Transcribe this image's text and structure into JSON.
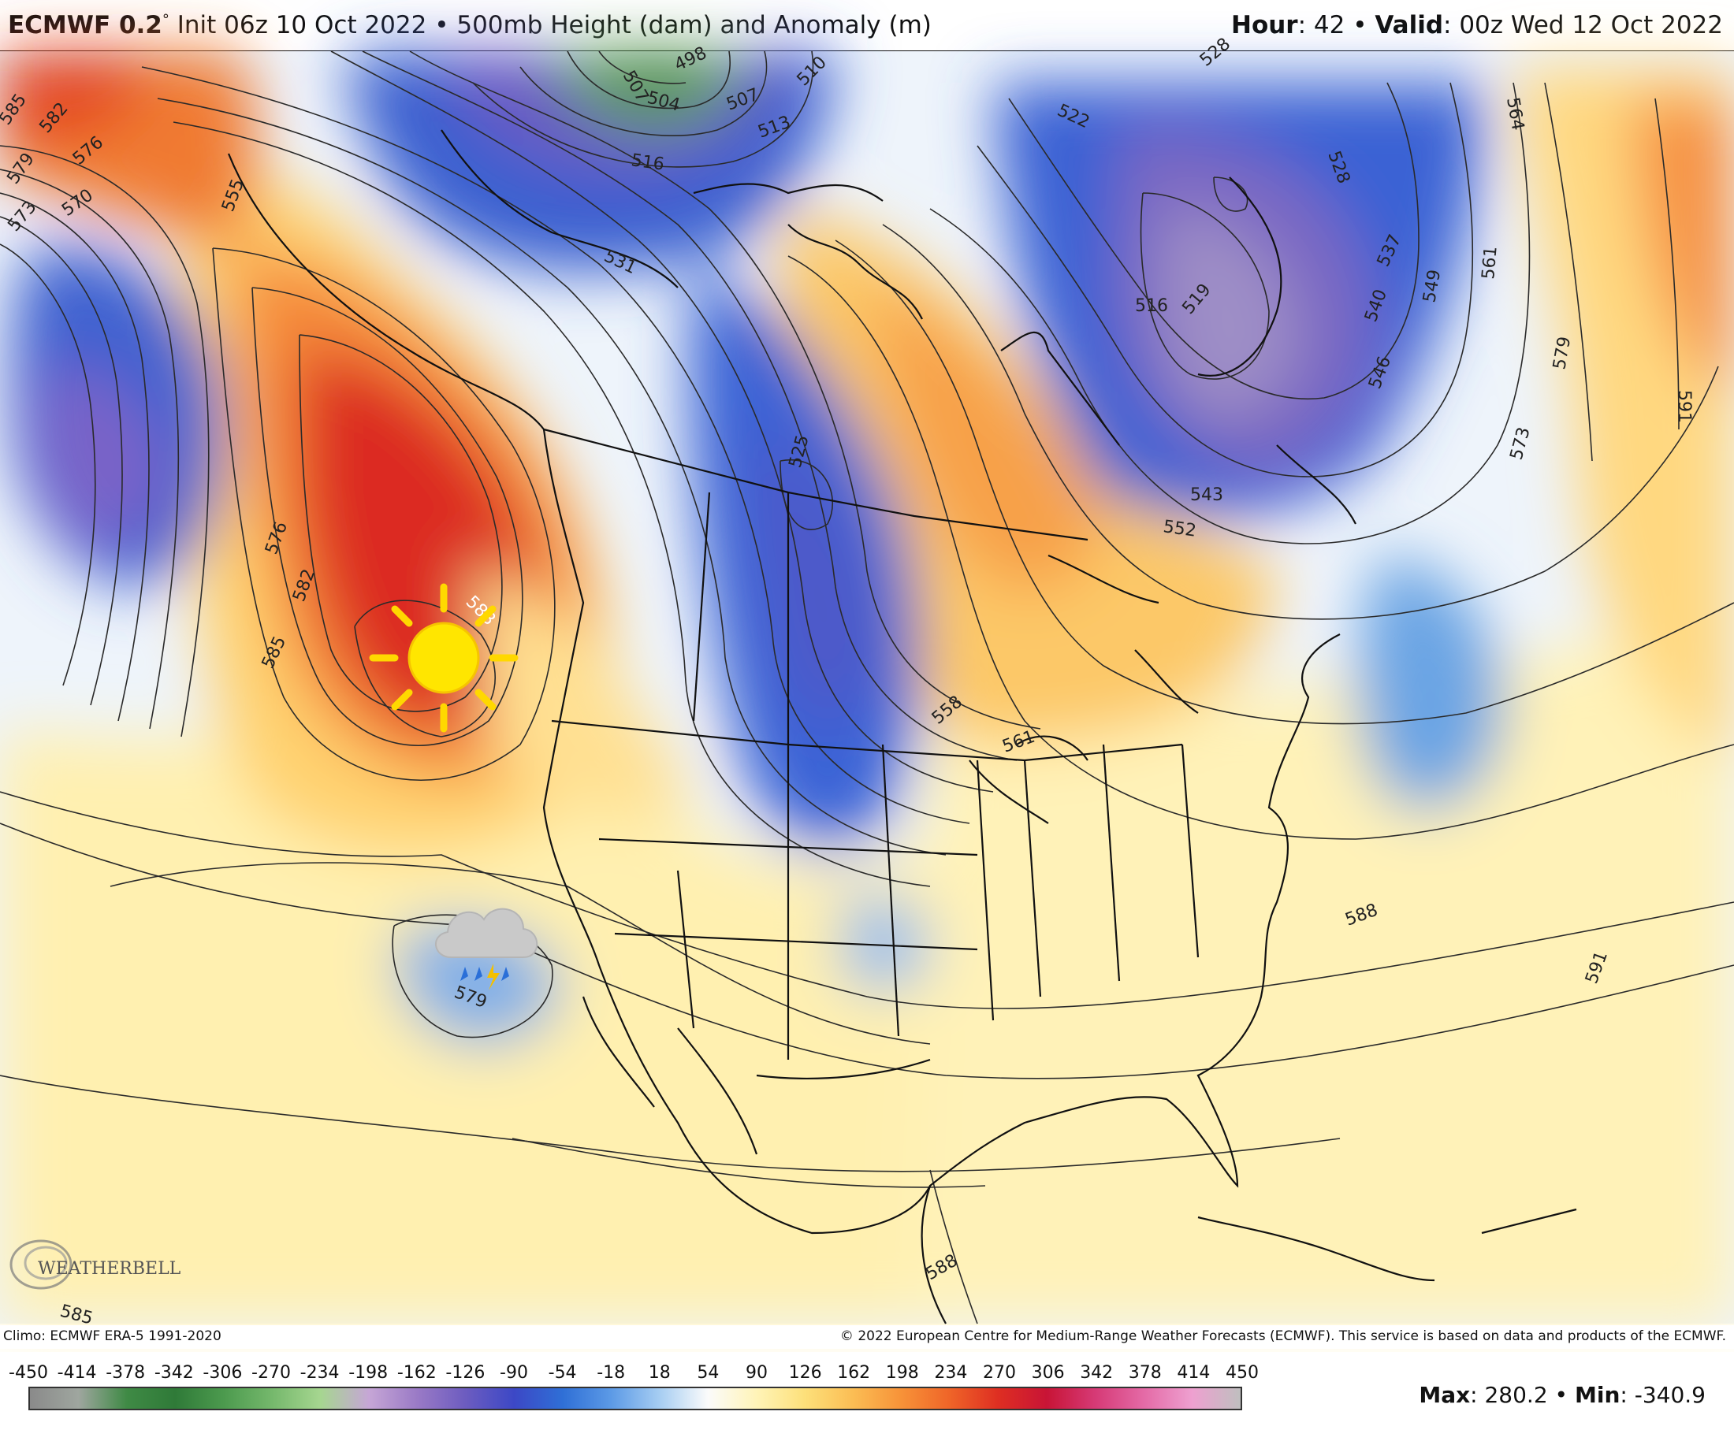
{
  "header": {
    "model": "ECMWF 0.2",
    "degree": "°",
    "init": " Init 06z 10 Oct 2022",
    "sep1": " • ",
    "product": "500mb Height (dam) and Anomaly (m)",
    "hour_label": "Hour",
    "hour_value": ": 42",
    "sep2": " • ",
    "valid_label": "Valid",
    "valid_value": ": 00z Wed 12 Oct 2022"
  },
  "contour_labels": [
    {
      "id": "c585a",
      "text": "585"
    },
    {
      "id": "c582a",
      "text": "582"
    },
    {
      "id": "c579a",
      "text": "579"
    },
    {
      "id": "c576a",
      "text": "576"
    },
    {
      "id": "c573a",
      "text": "573"
    },
    {
      "id": "c570a",
      "text": "570"
    },
    {
      "id": "c555a",
      "text": "555"
    },
    {
      "id": "c507a",
      "text": "507"
    },
    {
      "id": "c498a",
      "text": "498"
    },
    {
      "id": "c504a",
      "text": "504"
    },
    {
      "id": "c507b",
      "text": "507"
    },
    {
      "id": "c510a",
      "text": "510"
    },
    {
      "id": "c513a",
      "text": "513"
    },
    {
      "id": "c516a",
      "text": "516"
    },
    {
      "id": "c522a",
      "text": "522"
    },
    {
      "id": "c528a",
      "text": "528"
    },
    {
      "id": "c528b",
      "text": "528"
    },
    {
      "id": "c531a",
      "text": "531"
    },
    {
      "id": "c516b",
      "text": "516"
    },
    {
      "id": "c519a",
      "text": "519"
    },
    {
      "id": "c537a",
      "text": "537"
    },
    {
      "id": "c540a",
      "text": "540"
    },
    {
      "id": "c549a",
      "text": "549"
    },
    {
      "id": "c546a",
      "text": "546"
    },
    {
      "id": "c561a",
      "text": "561"
    },
    {
      "id": "c564a",
      "text": "564"
    },
    {
      "id": "c579b",
      "text": "579"
    },
    {
      "id": "c591a",
      "text": "591"
    },
    {
      "id": "c573b",
      "text": "573"
    },
    {
      "id": "c525a",
      "text": "525"
    },
    {
      "id": "c552a",
      "text": "552"
    },
    {
      "id": "c543a",
      "text": "543"
    },
    {
      "id": "c576b",
      "text": "576"
    },
    {
      "id": "c582b",
      "text": "582"
    },
    {
      "id": "c585b",
      "text": "585"
    },
    {
      "id": "c588a",
      "text": "588"
    },
    {
      "id": "c558a",
      "text": "558"
    },
    {
      "id": "c561b",
      "text": "561"
    },
    {
      "id": "c579c",
      "text": "579"
    },
    {
      "id": "c588b",
      "text": "588"
    },
    {
      "id": "c591b",
      "text": "591"
    },
    {
      "id": "c588c",
      "text": "588"
    },
    {
      "id": "c585c",
      "text": "585"
    }
  ],
  "logo": {
    "text": "WEATHERBELL"
  },
  "credits": {
    "left": "Climo: ECMWF ERA-5 1991-2020",
    "right": "© 2022 European Centre for Medium-Range Weather Forecasts (ECMWF). This service is based on data and products of the ECMWF."
  },
  "scale": {
    "ticks": [
      "-450",
      "-414",
      "-378",
      "-342",
      "-306",
      "-270",
      "-234",
      "-198",
      "-162",
      "-126",
      "-90",
      "-54",
      "-18",
      "18",
      "54",
      "90",
      "126",
      "162",
      "198",
      "234",
      "270",
      "306",
      "342",
      "378",
      "414",
      "450"
    ],
    "colors": [
      "#8a8a8a",
      "#9fa69f",
      "#3f8a45",
      "#2f7a38",
      "#4c9a4e",
      "#75b86c",
      "#a6d690",
      "#c6a6d6",
      "#9a7ac6",
      "#6c5cc0",
      "#3c48c6",
      "#2f6fd6",
      "#5c9ae6",
      "#a6cdf2",
      "#fbfbfb",
      "#fff4b8",
      "#fde07a",
      "#fbbd54",
      "#f79238",
      "#ef6428",
      "#de2e22",
      "#c81436",
      "#d63a76",
      "#e46aa6",
      "#eea0d0",
      "#bfbfbf"
    ],
    "max_label": "Max",
    "max_value": ": 280.2",
    "sep": " • ",
    "min_label": "Min",
    "min_value": ": -340.9"
  },
  "icons": {
    "sun": "sun-icon",
    "storm": "thunderstorm-cloud-icon",
    "logo": "weatherbell-logo"
  }
}
